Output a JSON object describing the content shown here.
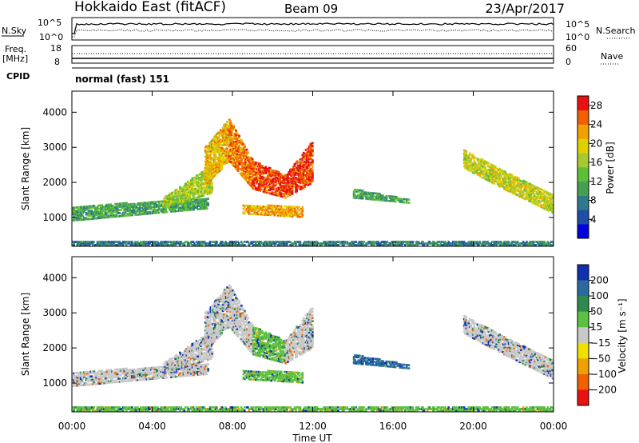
{
  "header": {
    "title": "Hokkaido East (fitACF)",
    "beam": "Beam 09",
    "date": "23/Apr/2017"
  },
  "top_panel": {
    "left_label": "N.Sky",
    "left_ticks": [
      "10^5",
      "10^0"
    ],
    "right_ticks": [
      "10^5",
      "10^0"
    ],
    "right_label": "N.Search"
  },
  "freq_panel": {
    "label_line1": "Freq.",
    "label_line2": "[MHz]",
    "left_ticks": [
      "18",
      "8"
    ],
    "right_ticks": [
      "60",
      "0"
    ],
    "right_label": "Nave"
  },
  "cpid_panel": {
    "label": "CPID",
    "mode_text": "normal (fast) 151"
  },
  "chart_data": [
    {
      "type": "heatmap",
      "name": "power",
      "ylabel": "Slant Range [km]",
      "yticks": [
        1000,
        2000,
        3000,
        4000
      ],
      "ylim": [
        180,
        4600
      ],
      "xlim": [
        0,
        24
      ],
      "colorbar": {
        "label": "Power [dB]",
        "ticks": [
          "4",
          "8",
          "12",
          "16",
          "20",
          "24",
          "28"
        ],
        "tick_values": [
          4,
          8,
          12,
          16,
          20,
          24,
          28
        ],
        "range": [
          0,
          30
        ],
        "colors": [
          "#0000e0",
          "#1e4ea8",
          "#2e7a8c",
          "#44a050",
          "#5dbf36",
          "#a8c830",
          "#e0d000",
          "#f0a000",
          "#f06000",
          "#e81010"
        ]
      },
      "regions": [
        {
          "t": [
            0.0,
            6.8
          ],
          "r0": [
            900,
            1250
          ],
          "r1": [
            1300,
            1550
          ],
          "value": 11
        },
        {
          "t": [
            4.5,
            7.0
          ],
          "r0": [
            1250,
            1700
          ],
          "r1": [
            1550,
            2500
          ],
          "value": 16
        },
        {
          "t": [
            6.6,
            7.8
          ],
          "r0": [
            1900,
            2600
          ],
          "r1": [
            3000,
            3800
          ],
          "value": 21
        },
        {
          "t": [
            7.8,
            9.0
          ],
          "r0": [
            2600,
            1800
          ],
          "r1": [
            3800,
            2600
          ],
          "value": 24
        },
        {
          "t": [
            9.0,
            10.6
          ],
          "r0": [
            1800,
            1550
          ],
          "r1": [
            2600,
            2200
          ],
          "value": 27
        },
        {
          "t": [
            10.6,
            12.0
          ],
          "r0": [
            1550,
            2000
          ],
          "r1": [
            2200,
            3200
          ],
          "value": 27
        },
        {
          "t": [
            8.5,
            11.5
          ],
          "r0": [
            1100,
            1000
          ],
          "r1": [
            1350,
            1300
          ],
          "value": 22
        },
        {
          "t": [
            14.0,
            16.8
          ],
          "r0": [
            1550,
            1400
          ],
          "r1": [
            1800,
            1500
          ],
          "value": 11
        },
        {
          "t": [
            19.5,
            21.5
          ],
          "r0": [
            2400,
            1800
          ],
          "r1": [
            2900,
            2300
          ],
          "value": 18
        },
        {
          "t": [
            21.5,
            24.0
          ],
          "r0": [
            1800,
            1100
          ],
          "r1": [
            2300,
            1600
          ],
          "value": 18
        },
        {
          "t": [
            0.0,
            24.0
          ],
          "r0": [
            200,
            200
          ],
          "r1": [
            320,
            320
          ],
          "value": 8
        }
      ]
    },
    {
      "type": "heatmap",
      "name": "velocity",
      "ylabel": "Slant Range [km]",
      "yticks": [
        1000,
        2000,
        3000,
        4000
      ],
      "ylim": [
        180,
        4600
      ],
      "xlim": [
        0,
        24
      ],
      "xlabel": "Time UT",
      "xticks": [
        "00:00",
        "04:00",
        "08:00",
        "12:00",
        "16:00",
        "20:00",
        "00:00"
      ],
      "colorbar": {
        "label": "Velocity [m s⁻¹]",
        "ticks": [
          "200",
          "100",
          "50",
          "15",
          "−15",
          "−50",
          "−100",
          "−200"
        ],
        "colors": [
          "#1030b0",
          "#2a6aa0",
          "#2e8a4e",
          "#5cc040",
          "#c8c8c8",
          "#f0e000",
          "#f0a000",
          "#f06000",
          "#e81010"
        ]
      },
      "regions": [
        {
          "t": [
            0.0,
            6.8
          ],
          "r0": [
            900,
            1250
          ],
          "r1": [
            1300,
            1550
          ],
          "value": 0
        },
        {
          "t": [
            4.5,
            7.0
          ],
          "r0": [
            1250,
            1700
          ],
          "r1": [
            1550,
            2500
          ],
          "value": 0
        },
        {
          "t": [
            6.6,
            7.8
          ],
          "r0": [
            1900,
            2600
          ],
          "r1": [
            3000,
            3800
          ],
          "value": 0
        },
        {
          "t": [
            7.8,
            9.0
          ],
          "r0": [
            2600,
            1800
          ],
          "r1": [
            3800,
            2600
          ],
          "value": 0
        },
        {
          "t": [
            9.0,
            10.6
          ],
          "r0": [
            1800,
            1550
          ],
          "r1": [
            2600,
            2200
          ],
          "value": 30
        },
        {
          "t": [
            10.6,
            12.0
          ],
          "r0": [
            1550,
            2000
          ],
          "r1": [
            2200,
            3200
          ],
          "value": 0
        },
        {
          "t": [
            8.5,
            11.5
          ],
          "r0": [
            1100,
            1000
          ],
          "r1": [
            1350,
            1300
          ],
          "value": 30
        },
        {
          "t": [
            14.0,
            16.8
          ],
          "r0": [
            1550,
            1400
          ],
          "r1": [
            1800,
            1500
          ],
          "value": 120
        },
        {
          "t": [
            19.5,
            21.5
          ],
          "r0": [
            2400,
            1800
          ],
          "r1": [
            2900,
            2300
          ],
          "value": 0
        },
        {
          "t": [
            21.5,
            24.0
          ],
          "r0": [
            1800,
            1100
          ],
          "r1": [
            2300,
            1600
          ],
          "value": 0
        },
        {
          "t": [
            0.0,
            24.0
          ],
          "r0": [
            200,
            200
          ],
          "r1": [
            320,
            320
          ],
          "value": 30
        }
      ]
    }
  ]
}
